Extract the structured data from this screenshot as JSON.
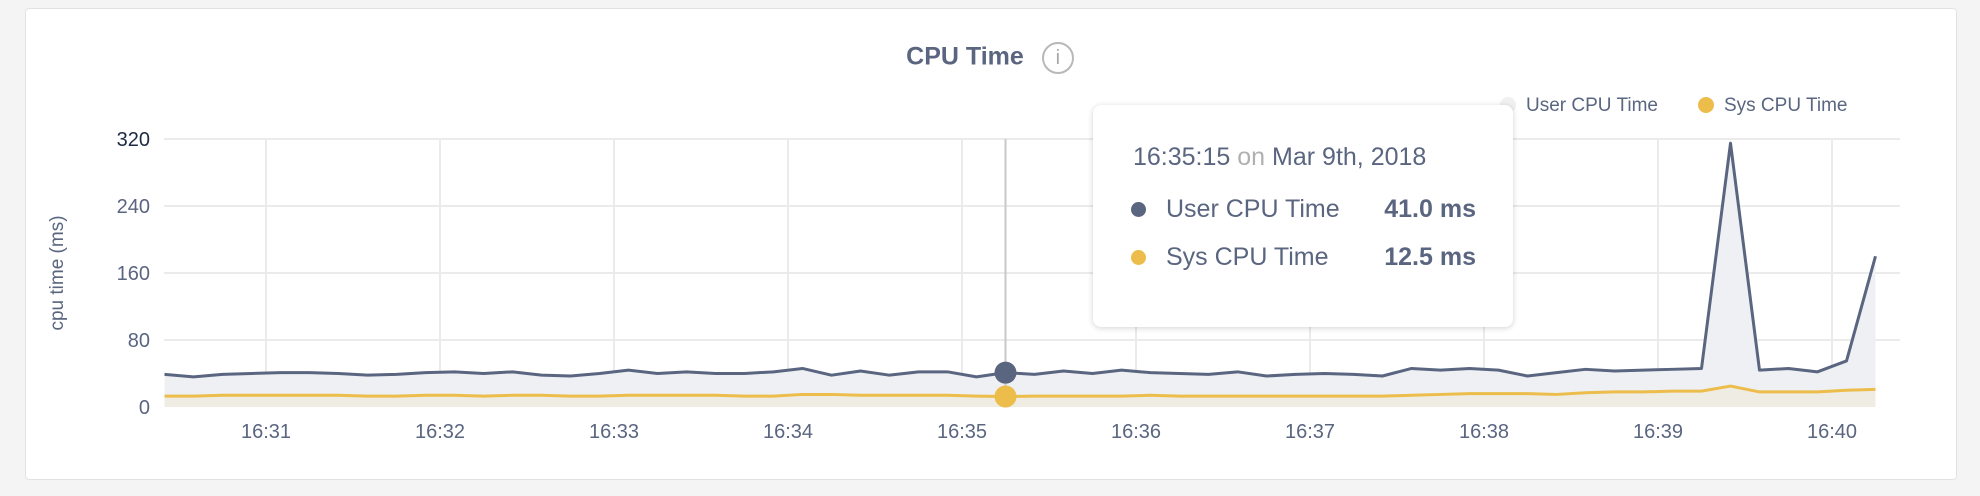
{
  "header": {
    "title": "CPU Time",
    "info_icon": "info-icon"
  },
  "legend": [
    {
      "label": "User CPU Time",
      "color": "#5a6580"
    },
    {
      "label": "Sys CPU Time",
      "color": "#ecbd4a"
    }
  ],
  "tooltip": {
    "time": "16:35:15",
    "on": "on",
    "date": "Mar 9th, 2018",
    "rows": [
      {
        "label": "User CPU Time",
        "value": "41.0 ms",
        "color": "#5a6580"
      },
      {
        "label": "Sys CPU Time",
        "value": "12.5 ms",
        "color": "#ecbd4a"
      }
    ]
  },
  "chart_data": {
    "type": "area",
    "title": "CPU Time",
    "ylabel": "cpu time (ms)",
    "xlabel": "",
    "ylim": [
      0,
      320
    ],
    "yticks": [
      "0",
      "80",
      "160",
      "240",
      "320"
    ],
    "xticks": [
      "16:31",
      "16:32",
      "16:33",
      "16:34",
      "16:35",
      "16:36",
      "16:37",
      "16:38",
      "16:39",
      "16:40"
    ],
    "x_start": "16:30:25",
    "x_step_seconds": 10,
    "grid": true,
    "legend_position": "top-right",
    "hover_index": 29,
    "series": [
      {
        "name": "User CPU Time",
        "color": "#5a6580",
        "values": [
          39,
          36,
          39,
          40,
          41,
          41,
          40,
          38,
          39,
          41,
          42,
          40,
          42,
          38,
          37,
          40,
          44,
          40,
          42,
          40,
          40,
          42,
          46,
          38,
          43,
          38,
          42,
          42,
          36,
          41,
          39,
          43,
          40,
          44,
          41,
          40,
          39,
          42,
          37,
          39,
          40,
          39,
          37,
          46,
          44,
          46,
          44,
          37,
          41,
          45,
          43,
          44,
          45,
          46,
          315,
          44,
          46,
          42,
          55,
          180
        ]
      },
      {
        "name": "Sys CPU Time",
        "color": "#ecbd4a",
        "values": [
          13,
          13,
          14,
          14,
          14,
          14,
          14,
          13,
          13,
          14,
          14,
          13,
          14,
          14,
          13,
          13,
          14,
          14,
          14,
          14,
          13,
          13,
          15,
          15,
          14,
          14,
          14,
          14,
          13,
          12.5,
          13,
          13,
          13,
          13,
          14,
          13,
          13,
          13,
          13,
          13,
          13,
          13,
          13,
          14,
          15,
          16,
          16,
          16,
          15,
          17,
          18,
          18,
          19,
          19,
          25,
          18,
          18,
          18,
          20,
          21
        ]
      }
    ]
  }
}
